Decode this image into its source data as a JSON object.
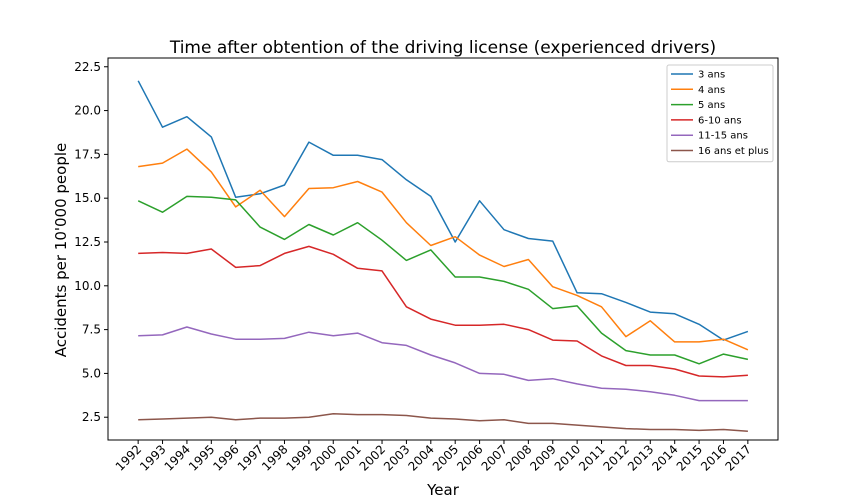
{
  "chart_data": {
    "type": "line",
    "title": "Time after obtention of the driving license (experienced drivers)",
    "xlabel": "Year",
    "ylabel": "Accidents per 10'000 people",
    "ylim": [
      1.2,
      23.0
    ],
    "yticks": [
      "2.5",
      "5.0",
      "7.5",
      "10.0",
      "12.5",
      "15.0",
      "17.5",
      "20.0",
      "22.5"
    ],
    "grid": false,
    "legend_position": "top-right",
    "x": [
      "1992",
      "1993",
      "1994",
      "1995",
      "1996",
      "1997",
      "1998",
      "1999",
      "2000",
      "2001",
      "2002",
      "2003",
      "2004",
      "2005",
      "2006",
      "2007",
      "2008",
      "2009",
      "2010",
      "2011",
      "2012",
      "2013",
      "2014",
      "2015",
      "2016",
      "2017"
    ],
    "series": [
      {
        "name": "3 ans",
        "color": "#1f77b4",
        "values": [
          21.7,
          19.05,
          19.65,
          18.5,
          15.05,
          15.25,
          15.75,
          18.2,
          17.45,
          17.45,
          17.2,
          16.05,
          15.1,
          12.5,
          14.85,
          13.2,
          12.7,
          12.55,
          9.6,
          9.55,
          9.05,
          8.5,
          8.4,
          7.8,
          6.9,
          7.4
        ]
      },
      {
        "name": "4 ans",
        "color": "#ff7f0e",
        "values": [
          16.8,
          17.0,
          17.8,
          16.5,
          14.5,
          15.45,
          13.95,
          15.55,
          15.6,
          15.95,
          15.35,
          13.6,
          12.3,
          12.8,
          11.75,
          11.1,
          11.5,
          9.95,
          9.45,
          8.8,
          7.1,
          8.0,
          6.8,
          6.8,
          6.95,
          6.35
        ]
      },
      {
        "name": "5 ans",
        "color": "#2ca02c",
        "values": [
          14.85,
          14.2,
          15.1,
          15.05,
          14.9,
          13.35,
          12.65,
          13.5,
          12.9,
          13.6,
          12.6,
          11.45,
          12.05,
          10.5,
          10.5,
          10.25,
          9.8,
          8.7,
          8.85,
          7.3,
          6.3,
          6.05,
          6.05,
          5.55,
          6.1,
          5.8
        ]
      },
      {
        "name": "6-10 ans",
        "color": "#d62728",
        "values": [
          11.85,
          11.9,
          11.85,
          12.1,
          11.05,
          11.15,
          11.85,
          12.25,
          11.8,
          11.0,
          10.85,
          8.8,
          8.1,
          7.75,
          7.75,
          7.8,
          7.5,
          6.9,
          6.85,
          6.0,
          5.45,
          5.45,
          5.25,
          4.85,
          4.8,
          4.9
        ]
      },
      {
        "name": "11-15 ans",
        "color": "#9467bd",
        "values": [
          7.15,
          7.2,
          7.65,
          7.25,
          6.95,
          6.95,
          7.0,
          7.35,
          7.15,
          7.3,
          6.75,
          6.6,
          6.05,
          5.6,
          5.0,
          4.95,
          4.6,
          4.7,
          4.4,
          4.15,
          4.1,
          3.95,
          3.75,
          3.45,
          3.45,
          3.45
        ]
      },
      {
        "name": "16 ans et plus",
        "color": "#8c564b",
        "values": [
          2.35,
          2.4,
          2.45,
          2.5,
          2.35,
          2.45,
          2.45,
          2.5,
          2.7,
          2.65,
          2.65,
          2.6,
          2.45,
          2.4,
          2.3,
          2.35,
          2.15,
          2.15,
          2.05,
          1.95,
          1.85,
          1.8,
          1.8,
          1.75,
          1.8,
          1.7
        ]
      }
    ]
  }
}
